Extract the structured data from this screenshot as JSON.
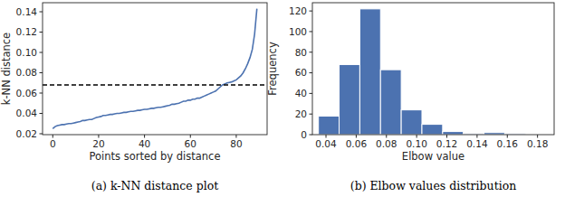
{
  "chart_data": [
    {
      "type": "line",
      "x_label": "Points sorted by distance",
      "y_label": "k-NN distance",
      "caption": "(a) k-NN distance plot",
      "xlim": [
        -4.45,
        93.45
      ],
      "ylim": [
        0.0191,
        0.1489
      ],
      "xticks": [
        0,
        20,
        40,
        60,
        80
      ],
      "yticks": [
        0.02,
        0.04,
        0.06,
        0.08,
        {
          "value": 0.1,
          "label": "0.10"
        },
        0.12,
        0.14
      ],
      "grid": false,
      "reference_line": {
        "value": 0.068,
        "line_style": "dashed",
        "color": "#000000"
      },
      "x": [
        0,
        1,
        2,
        3,
        4,
        5,
        6,
        7,
        8,
        9,
        10,
        11,
        12,
        13,
        14,
        15,
        16,
        17,
        18,
        19,
        20,
        21,
        22,
        23,
        24,
        25,
        26,
        27,
        28,
        29,
        30,
        31,
        32,
        33,
        34,
        35,
        36,
        37,
        38,
        39,
        40,
        41,
        42,
        43,
        44,
        45,
        46,
        47,
        48,
        49,
        50,
        51,
        52,
        53,
        54,
        55,
        56,
        57,
        58,
        59,
        60,
        61,
        62,
        63,
        64,
        65,
        66,
        67,
        68,
        69,
        70,
        71,
        72,
        73,
        74,
        75,
        76,
        77,
        78,
        79,
        80,
        81,
        82,
        83,
        84,
        85,
        86,
        87,
        88,
        89
      ],
      "series": [
        {
          "name": "k-NN distance",
          "color": "#4c72b0",
          "line_style": "solid",
          "values": [
            0.025,
            0.027,
            0.028,
            0.0285,
            0.029,
            0.029,
            0.0295,
            0.03,
            0.03,
            0.0305,
            0.031,
            0.0315,
            0.032,
            0.033,
            0.033,
            0.0335,
            0.034,
            0.034,
            0.035,
            0.036,
            0.0365,
            0.037,
            0.038,
            0.038,
            0.0385,
            0.039,
            0.039,
            0.0395,
            0.04,
            0.04,
            0.0405,
            0.041,
            0.041,
            0.0415,
            0.042,
            0.042,
            0.0425,
            0.043,
            0.043,
            0.0435,
            0.044,
            0.044,
            0.0445,
            0.045,
            0.045,
            0.0455,
            0.046,
            0.046,
            0.0465,
            0.047,
            0.0475,
            0.048,
            0.049,
            0.049,
            0.0495,
            0.05,
            0.051,
            0.052,
            0.052,
            0.053,
            0.053,
            0.054,
            0.054,
            0.055,
            0.055,
            0.056,
            0.057,
            0.058,
            0.059,
            0.06,
            0.061,
            0.062,
            0.064,
            0.066,
            0.068,
            0.069,
            0.07,
            0.0705,
            0.071,
            0.072,
            0.073,
            0.075,
            0.077,
            0.08,
            0.084,
            0.089,
            0.095,
            0.103,
            0.118,
            0.143
          ]
        }
      ]
    },
    {
      "type": "histogram",
      "x_label": "Elbow value",
      "y_label": "Frequency",
      "caption": "(b) Elbow values distribution",
      "xlim": [
        0.031,
        0.191
      ],
      "ylim": [
        0,
        128
      ],
      "xticks": [
        0.04,
        0.06,
        0.08,
        {
          "value": 0.1,
          "label": "0.10"
        },
        0.12,
        0.14,
        0.16,
        0.18
      ],
      "yticks": [
        0,
        20,
        40,
        60,
        80,
        100,
        120
      ],
      "grid": false,
      "color": "#4c72b0",
      "bins": [
        0.035,
        0.0487,
        0.0624,
        0.0761,
        0.0898,
        0.1035,
        0.1172,
        0.1309,
        0.1446,
        0.1583,
        0.172
      ],
      "counts": [
        18,
        68,
        122,
        63,
        24,
        10,
        3,
        1,
        2,
        1
      ]
    }
  ]
}
